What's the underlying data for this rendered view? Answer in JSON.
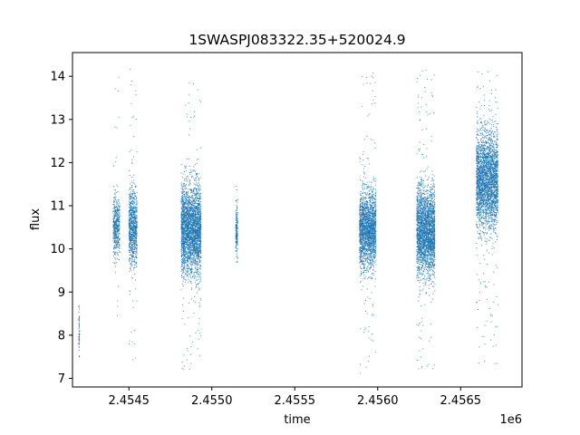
{
  "chart_data": {
    "type": "scatter",
    "title": "1SWASPJ083322.35+520024.9",
    "xlabel": "time",
    "ylabel": "flux",
    "x_offset_label": "1e6",
    "xlim": [
      2454160,
      2456870
    ],
    "ylim": [
      6.8,
      14.55
    ],
    "x_ticks": [
      {
        "value": 2454500,
        "label": "2.4545"
      },
      {
        "value": 2455000,
        "label": "2.4550"
      },
      {
        "value": 2455500,
        "label": "2.4555"
      },
      {
        "value": 2456000,
        "label": "2.4560"
      },
      {
        "value": 2456500,
        "label": "2.4565"
      }
    ],
    "y_ticks": [
      {
        "value": 7,
        "label": "7"
      },
      {
        "value": 8,
        "label": "8"
      },
      {
        "value": 9,
        "label": "9"
      },
      {
        "value": 10,
        "label": "10"
      },
      {
        "value": 11,
        "label": "11"
      },
      {
        "value": 12,
        "label": "12"
      },
      {
        "value": 13,
        "label": "13"
      },
      {
        "value": 14,
        "label": "14"
      }
    ],
    "grid": false,
    "marker_color": "#1f77b4",
    "series": [
      {
        "clusters": [
          {
            "x_center": 2454200,
            "x_width": 6,
            "y_mean": 8.1,
            "y_sd": 0.3,
            "y_min": 7.5,
            "y_max": 8.7,
            "n": 60
          },
          {
            "x_center": 2454425,
            "x_width": 40,
            "y_mean": 10.5,
            "y_sd": 0.35,
            "y_min": 8.3,
            "y_max": 14.0,
            "n": 500
          },
          {
            "x_center": 2454525,
            "x_width": 50,
            "y_mean": 10.5,
            "y_sd": 0.45,
            "y_min": 7.2,
            "y_max": 14.2,
            "n": 900
          },
          {
            "x_center": 2454875,
            "x_width": 120,
            "y_mean": 10.45,
            "y_sd": 0.5,
            "y_min": 7.2,
            "y_max": 13.9,
            "n": 3000
          },
          {
            "x_center": 2455150,
            "x_width": 12,
            "y_mean": 10.4,
            "y_sd": 0.3,
            "y_min": 9.7,
            "y_max": 11.6,
            "n": 200
          },
          {
            "x_center": 2455940,
            "x_width": 100,
            "y_mean": 10.45,
            "y_sd": 0.45,
            "y_min": 7.1,
            "y_max": 14.1,
            "n": 2200
          },
          {
            "x_center": 2456290,
            "x_width": 110,
            "y_mean": 10.4,
            "y_sd": 0.5,
            "y_min": 7.2,
            "y_max": 14.2,
            "n": 2800
          },
          {
            "x_center": 2456660,
            "x_width": 130,
            "y_mean": 11.6,
            "y_sd": 0.55,
            "y_min": 7.3,
            "y_max": 14.2,
            "n": 3000
          }
        ]
      }
    ]
  }
}
